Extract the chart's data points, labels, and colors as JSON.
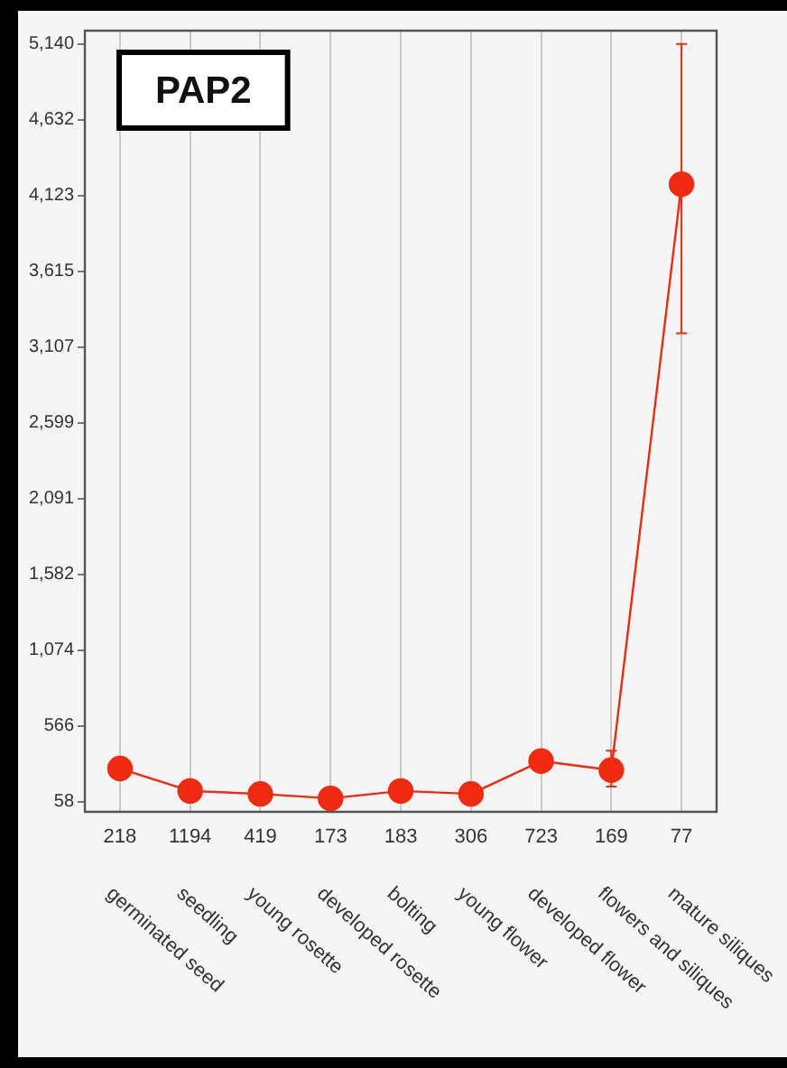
{
  "chart_data": {
    "type": "line",
    "title": "PAP2",
    "categories": [
      "germinated seed",
      "seedling",
      "young rosette",
      "developed rosette",
      "bolting",
      "young flower",
      "developed flower",
      "flowers and siliques",
      "mature siliques"
    ],
    "series": [
      {
        "color": "#f02a10",
        "values": [
          280,
          130,
          110,
          80,
          130,
          110,
          330,
          270,
          4200
        ],
        "errors": [
          null,
          null,
          null,
          null,
          null,
          null,
          null,
          [
            160,
            400
          ],
          [
            3200,
            5140
          ]
        ]
      }
    ],
    "ylim": [
      -10,
      5230
    ],
    "yticks": [
      {
        "value": 58,
        "label": "58"
      },
      {
        "value": 566,
        "label": "566"
      },
      {
        "value": 1074,
        "label": "1,074"
      },
      {
        "value": 1582,
        "label": "1,582"
      },
      {
        "value": 2091,
        "label": "2,091"
      },
      {
        "value": 2599,
        "label": "2,599"
      },
      {
        "value": 3107,
        "label": "3,107"
      },
      {
        "value": 3615,
        "label": "3,615"
      },
      {
        "value": 4123,
        "label": "4,123"
      },
      {
        "value": 4632,
        "label": "4,632"
      },
      {
        "value": 5140,
        "label": "5,140"
      }
    ],
    "grid": "x",
    "marker": "circle",
    "line_style": "solid",
    "annotations": [
      "218",
      "1194",
      "419",
      "173",
      "183",
      "306",
      "723",
      "169",
      "77"
    ]
  }
}
